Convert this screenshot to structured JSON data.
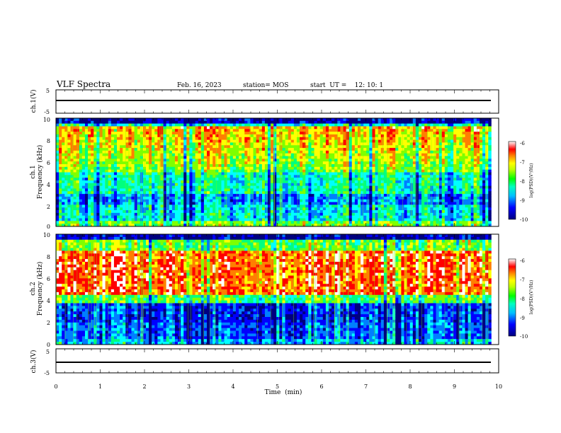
{
  "header": {
    "title": "VLF Spectra",
    "date": "Feb. 16, 2023",
    "station": "station= MOS",
    "start": "start  UT =    12: 10: 1"
  },
  "chart_data": [
    {
      "type": "line",
      "name": "ch1-waveform",
      "ylabel": "ch.1(V)",
      "ylim": [
        -5,
        5
      ],
      "yticks": [
        "5",
        "-5"
      ],
      "xlim": [
        0,
        9.83
      ],
      "y": 0
    },
    {
      "type": "heatmap",
      "name": "ch1-spectrogram",
      "ylabel": "ch.1\nFrequency (kHz)",
      "ylim": [
        0,
        10
      ],
      "yticks": [
        "0",
        "2",
        "4",
        "6",
        "8",
        "10"
      ],
      "xlim": [
        0,
        9.83
      ],
      "colorbar": {
        "label": "log(PSD)(V²/Hz)",
        "range": [
          -10,
          -6
        ],
        "ticks": [
          "-6",
          "-7",
          "-8",
          "-9",
          "-10"
        ]
      }
    },
    {
      "type": "heatmap",
      "name": "ch2-spectrogram",
      "ylabel": "ch.2\nFrequency (kHz)",
      "ylim": [
        0,
        10
      ],
      "yticks": [
        "0",
        "2",
        "4",
        "6",
        "8",
        "10"
      ],
      "xlim": [
        0,
        9.83
      ],
      "colorbar": {
        "label": "log(PSD)(V²/Hz)",
        "range": [
          -10,
          -6
        ],
        "ticks": [
          "-6",
          "-7",
          "-8",
          "-9",
          "-10"
        ]
      }
    },
    {
      "type": "line",
      "name": "ch3-waveform",
      "ylabel": "ch.3(V)",
      "ylim": [
        -5,
        5
      ],
      "yticks": [
        "5",
        "-5"
      ],
      "xlim": [
        0,
        9.83
      ],
      "y": 0
    }
  ],
  "xaxis": {
    "label": "Time  (min)",
    "range": [
      0,
      10
    ],
    "ticks": [
      "0",
      "1",
      "2",
      "3",
      "4",
      "5",
      "6",
      "7",
      "8",
      "9",
      "10"
    ]
  },
  "colors": {
    "spectrum": [
      "#00007f",
      "#0000ff",
      "#007fff",
      "#00ffff",
      "#00ff7f",
      "#7fff00",
      "#ffff00",
      "#ff7f00",
      "#ff0000",
      "#ffffff"
    ]
  }
}
